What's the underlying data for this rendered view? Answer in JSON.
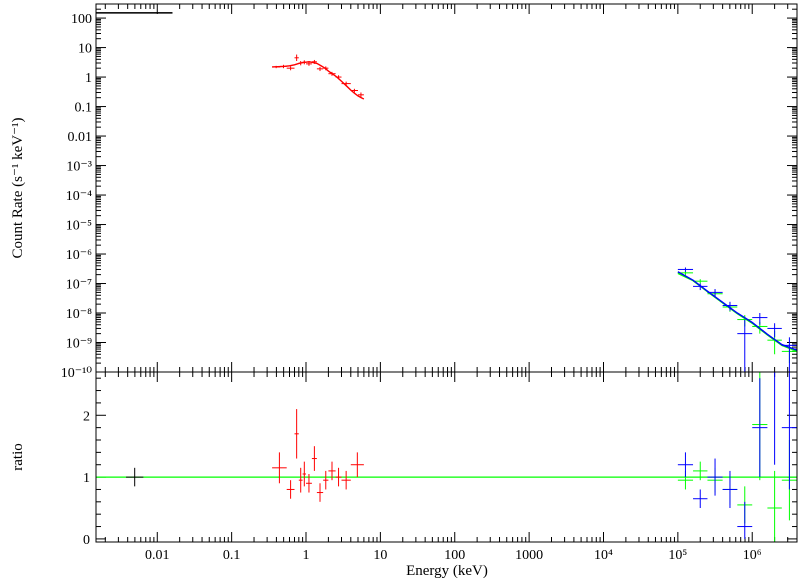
{
  "chart_data": [
    {
      "type": "scatter",
      "panel": "top",
      "ylabel": "Count Rate (s⁻¹ keV⁻¹)",
      "xscale": "log",
      "yscale": "log",
      "xlim": [
        0.0015,
        4000000
      ],
      "ylim": [
        1e-10,
        300
      ],
      "x_ticks": [
        {
          "value": 0.01,
          "label": "0.01"
        },
        {
          "value": 0.1,
          "label": "0.1"
        },
        {
          "value": 1,
          "label": "1"
        },
        {
          "value": 10,
          "label": "10"
        },
        {
          "value": 100,
          "label": "100"
        },
        {
          "value": 1000,
          "label": "1000"
        },
        {
          "value": 10000,
          "label": "10⁴"
        },
        {
          "value": 100000,
          "label": "10⁵"
        },
        {
          "value": 1000000,
          "label": "10⁶"
        }
      ],
      "y_ticks": [
        {
          "value": 100,
          "label": "100"
        },
        {
          "value": 10,
          "label": "10"
        },
        {
          "value": 1,
          "label": "1"
        },
        {
          "value": 0.1,
          "label": "0.1"
        },
        {
          "value": 0.01,
          "label": "0.01"
        },
        {
          "value": 0.001,
          "label": "10⁻³"
        },
        {
          "value": 0.0001,
          "label": "10⁻⁴"
        },
        {
          "value": 1e-05,
          "label": "10⁻⁵"
        },
        {
          "value": 1e-06,
          "label": "10⁻⁶"
        },
        {
          "value": 1e-07,
          "label": "10⁻⁷"
        },
        {
          "value": 1e-08,
          "label": "10⁻⁸"
        },
        {
          "value": 1e-09,
          "label": "10⁻⁹"
        },
        {
          "value": 1e-10,
          "label": "10⁻¹⁰"
        }
      ],
      "series": [
        {
          "color": "#000000",
          "points": [
            {
              "x0": 0.0015,
              "x1": 0.016,
              "y": 150
            }
          ],
          "model": [
            [
              0.0015,
              150
            ],
            [
              0.016,
              150
            ]
          ]
        },
        {
          "color": "#ff0000",
          "points": [
            {
              "x0": 0.35,
              "x1": 0.45,
              "y": 2.2,
              "ylo": 2.0,
              "yhi": 2.4
            },
            {
              "x0": 0.45,
              "x1": 0.55,
              "y": 2.3,
              "ylo": 2.0,
              "yhi": 2.6
            },
            {
              "x0": 0.55,
              "x1": 0.7,
              "y": 2.0,
              "ylo": 1.7,
              "yhi": 2.3
            },
            {
              "x0": 0.7,
              "x1": 0.8,
              "y": 4.5,
              "ylo": 3.5,
              "yhi": 5.8
            },
            {
              "x0": 0.8,
              "x1": 0.9,
              "y": 3.0,
              "ylo": 2.5,
              "yhi": 3.5
            },
            {
              "x0": 0.9,
              "x1": 1.0,
              "y": 3.2,
              "ylo": 2.7,
              "yhi": 3.7
            },
            {
              "x0": 1.0,
              "x1": 1.2,
              "y": 2.8,
              "ylo": 2.4,
              "yhi": 3.2
            },
            {
              "x0": 1.2,
              "x1": 1.4,
              "y": 3.3,
              "ylo": 2.8,
              "yhi": 3.8
            },
            {
              "x0": 1.4,
              "x1": 1.7,
              "y": 1.9,
              "ylo": 1.6,
              "yhi": 2.2
            },
            {
              "x0": 1.7,
              "x1": 2.0,
              "y": 2.0,
              "ylo": 1.7,
              "yhi": 2.3
            },
            {
              "x0": 2.0,
              "x1": 2.5,
              "y": 1.3,
              "ylo": 1.1,
              "yhi": 1.5
            },
            {
              "x0": 2.5,
              "x1": 3.0,
              "y": 1.0,
              "ylo": 0.85,
              "yhi": 1.15
            },
            {
              "x0": 3.0,
              "x1": 4.0,
              "y": 0.6,
              "ylo": 0.5,
              "yhi": 0.7
            },
            {
              "x0": 4.0,
              "x1": 5.0,
              "y": 0.35,
              "ylo": 0.3,
              "yhi": 0.4
            },
            {
              "x0": 5.0,
              "x1": 6.0,
              "y": 0.25,
              "ylo": 0.2,
              "yhi": 0.3
            }
          ],
          "model": [
            [
              0.35,
              2.2
            ],
            [
              0.5,
              2.3
            ],
            [
              0.6,
              2.4
            ],
            [
              0.7,
              2.6
            ],
            [
              0.8,
              2.9
            ],
            [
              0.9,
              3.1
            ],
            [
              1.0,
              3.2
            ],
            [
              1.1,
              3.3
            ],
            [
              1.25,
              3.1
            ],
            [
              1.4,
              2.9
            ],
            [
              1.6,
              2.4
            ],
            [
              1.8,
              2.0
            ],
            [
              2.0,
              1.6
            ],
            [
              2.3,
              1.25
            ],
            [
              2.6,
              1.0
            ],
            [
              3.0,
              0.72
            ],
            [
              3.5,
              0.5
            ],
            [
              4.0,
              0.36
            ],
            [
              4.5,
              0.28
            ],
            [
              5.0,
              0.23
            ],
            [
              5.5,
              0.2
            ],
            [
              6.0,
              0.18
            ]
          ]
        },
        {
          "color": "#00ff00",
          "points": [
            {
              "x0": 100000,
              "x1": 160000,
              "y": 2.3e-07,
              "ylo": 1.9e-07,
              "yhi": 2.7e-07
            },
            {
              "x0": 160000,
              "x1": 250000,
              "y": 1.2e-07,
              "ylo": 1e-07,
              "yhi": 1.4e-07
            },
            {
              "x0": 250000,
              "x1": 400000,
              "y": 4.5e-08,
              "ylo": 3.5e-08,
              "yhi": 5.5e-08
            },
            {
              "x0": 400000,
              "x1": 630000,
              "y": 1.6e-08,
              "ylo": 1.1e-08,
              "yhi": 2.1e-08
            },
            {
              "x0": 630000,
              "x1": 1000000,
              "y": 6e-09,
              "ylo": 3.5e-09,
              "yhi": 8.5e-09
            },
            {
              "x0": 1000000,
              "x1": 1600000,
              "y": 3.5e-09,
              "ylo": 2e-09,
              "yhi": 5e-09
            },
            {
              "x0": 1600000,
              "x1": 2500000,
              "y": 1.2e-09,
              "ylo": 4e-10,
              "yhi": 2.5e-09
            },
            {
              "x0": 2500000,
              "x1": 4000000,
              "y": 5e-10,
              "ylo": 2e-10,
              "yhi": 9e-10
            }
          ],
          "model": [
            [
              100000,
              2.2e-07
            ],
            [
              160000,
              1.25e-07
            ],
            [
              250000,
              5.3e-08
            ],
            [
              400000,
              2.2e-08
            ],
            [
              630000,
              9.5e-09
            ],
            [
              1000000,
              4.5e-09
            ],
            [
              1600000,
              1.8e-09
            ],
            [
              2500000,
              8e-10
            ],
            [
              4000000,
              5e-10
            ]
          ]
        },
        {
          "color": "#0000ff",
          "points": [
            {
              "x0": 100000,
              "x1": 160000,
              "y": 3e-07,
              "ylo": 2.5e-07,
              "yhi": 3.5e-07
            },
            {
              "x0": 160000,
              "x1": 250000,
              "y": 8e-08,
              "ylo": 6e-08,
              "yhi": 1e-07
            },
            {
              "x0": 250000,
              "x1": 400000,
              "y": 5e-08,
              "ylo": 3.5e-08,
              "yhi": 6.5e-08
            },
            {
              "x0": 400000,
              "x1": 630000,
              "y": 1.8e-08,
              "ylo": 1.2e-08,
              "yhi": 2.4e-08
            },
            {
              "x0": 630000,
              "x1": 1000000,
              "y": 2e-09,
              "ylo": 1e-10,
              "yhi": 6e-09
            },
            {
              "x0": 1000000,
              "x1": 1600000,
              "y": 7e-09,
              "ylo": 4e-09,
              "yhi": 1e-08
            },
            {
              "x0": 1600000,
              "x1": 2500000,
              "y": 3e-09,
              "ylo": 1.5e-09,
              "yhi": 4.5e-09
            },
            {
              "x0": 2500000,
              "x1": 4000000,
              "y": 8e-10,
              "ylo": 1e-10,
              "yhi": 1.5e-09
            }
          ],
          "model": [
            [
              100000,
              2.5e-07
            ],
            [
              160000,
              1.3e-07
            ],
            [
              250000,
              5.5e-08
            ],
            [
              400000,
              2.3e-08
            ],
            [
              630000,
              1e-08
            ],
            [
              1000000,
              4.8e-09
            ],
            [
              1600000,
              1.9e-09
            ],
            [
              2500000,
              8.5e-10
            ],
            [
              4000000,
              5.5e-10
            ]
          ]
        }
      ]
    },
    {
      "type": "scatter",
      "panel": "bottom",
      "xlabel": "Energy (keV)",
      "ylabel": "ratio",
      "xscale": "log",
      "xlim": [
        0.0015,
        4000000
      ],
      "ylim": [
        -0.05,
        2.7
      ],
      "y_ticks": [
        {
          "value": 0,
          "label": "0"
        },
        {
          "value": 1,
          "label": "1"
        },
        {
          "value": 2,
          "label": "2"
        }
      ],
      "reference_line": {
        "y": 1,
        "color": "#00ff00"
      },
      "series": [
        {
          "color": "#000000",
          "points": [
            {
              "x0": 0.0038,
              "x1": 0.0065,
              "y": 1.0,
              "ylo": 0.85,
              "yhi": 1.15
            }
          ]
        },
        {
          "color": "#ff0000",
          "points": [
            {
              "x0": 0.35,
              "x1": 0.55,
              "y": 1.15,
              "ylo": 0.9,
              "yhi": 1.4
            },
            {
              "x0": 0.55,
              "x1": 0.7,
              "y": 0.8,
              "ylo": 0.65,
              "yhi": 0.95
            },
            {
              "x0": 0.7,
              "x1": 0.8,
              "y": 1.7,
              "ylo": 1.3,
              "yhi": 2.1
            },
            {
              "x0": 0.8,
              "x1": 0.9,
              "y": 0.95,
              "ylo": 0.75,
              "yhi": 1.15
            },
            {
              "x0": 0.9,
              "x1": 1.0,
              "y": 1.05,
              "ylo": 0.85,
              "yhi": 1.25
            },
            {
              "x0": 1.0,
              "x1": 1.2,
              "y": 0.9,
              "ylo": 0.75,
              "yhi": 1.05
            },
            {
              "x0": 1.2,
              "x1": 1.4,
              "y": 1.3,
              "ylo": 1.1,
              "yhi": 1.5
            },
            {
              "x0": 1.4,
              "x1": 1.7,
              "y": 0.75,
              "ylo": 0.6,
              "yhi": 0.9
            },
            {
              "x0": 1.7,
              "x1": 2.0,
              "y": 0.95,
              "ylo": 0.8,
              "yhi": 1.1
            },
            {
              "x0": 2.0,
              "x1": 2.5,
              "y": 1.1,
              "ylo": 0.95,
              "yhi": 1.25
            },
            {
              "x0": 2.5,
              "x1": 3.0,
              "y": 1.0,
              "ylo": 0.85,
              "yhi": 1.15
            },
            {
              "x0": 3.0,
              "x1": 4.0,
              "y": 0.95,
              "ylo": 0.8,
              "yhi": 1.1
            },
            {
              "x0": 4.0,
              "x1": 6.0,
              "y": 1.2,
              "ylo": 1.0,
              "yhi": 1.4
            }
          ]
        },
        {
          "color": "#00ff00",
          "points": [
            {
              "x0": 100000,
              "x1": 160000,
              "y": 0.95,
              "ylo": 0.8,
              "yhi": 1.1
            },
            {
              "x0": 160000,
              "x1": 250000,
              "y": 1.1,
              "ylo": 0.95,
              "yhi": 1.25
            },
            {
              "x0": 250000,
              "x1": 400000,
              "y": 0.95,
              "ylo": 0.75,
              "yhi": 1.15
            },
            {
              "x0": 400000,
              "x1": 630000,
              "y": 0.8,
              "ylo": 0.55,
              "yhi": 1.05
            },
            {
              "x0": 630000,
              "x1": 1000000,
              "y": 0.55,
              "ylo": 0.25,
              "yhi": 0.85
            },
            {
              "x0": 1000000,
              "x1": 1600000,
              "y": 1.85,
              "ylo": 0.95,
              "yhi": 2.75
            },
            {
              "x0": 1600000,
              "x1": 2500000,
              "y": 0.5,
              "ylo": -0.05,
              "yhi": 1.1
            },
            {
              "x0": 2500000,
              "x1": 4000000,
              "y": 0.95,
              "ylo": 0.3,
              "yhi": 1.6
            }
          ]
        },
        {
          "color": "#0000ff",
          "points": [
            {
              "x0": 100000,
              "x1": 160000,
              "y": 1.2,
              "ylo": 1.0,
              "yhi": 1.4
            },
            {
              "x0": 160000,
              "x1": 250000,
              "y": 0.65,
              "ylo": 0.5,
              "yhi": 0.8
            },
            {
              "x0": 250000,
              "x1": 400000,
              "y": 1.0,
              "ylo": 0.7,
              "yhi": 1.3
            },
            {
              "x0": 400000,
              "x1": 630000,
              "y": 0.8,
              "ylo": 0.5,
              "yhi": 1.1
            },
            {
              "x0": 630000,
              "x1": 1000000,
              "y": 0.2,
              "ylo": 0.0,
              "yhi": 0.6
            },
            {
              "x0": 1000000,
              "x1": 1600000,
              "y": 1.8,
              "ylo": 1.0,
              "yhi": 2.6
            },
            {
              "x0": 1600000,
              "x1": 2500000,
              "y": 2.7,
              "ylo": 1.2,
              "yhi": 2.7
            },
            {
              "x0": 2500000,
              "x1": 4000000,
              "y": 1.8,
              "ylo": 0.8,
              "yhi": 2.7
            }
          ]
        }
      ]
    }
  ]
}
